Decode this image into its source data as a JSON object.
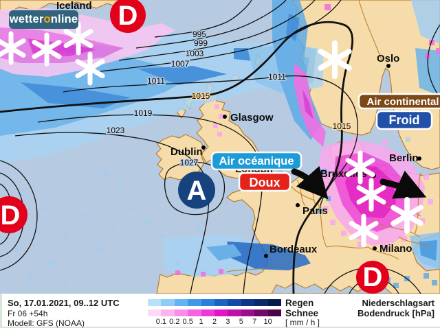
{
  "branding": {
    "logo_text_1": "wetter",
    "logo_accent": "o",
    "logo_text_2": "nline",
    "logo_bg": "#31647c",
    "logo_accent_color": "#f7a600"
  },
  "map": {
    "region_label": "Iceland",
    "cities": [
      {
        "name": "Oslo"
      },
      {
        "name": "Glasgow"
      },
      {
        "name": "Dublin"
      },
      {
        "name": "London"
      },
      {
        "name": "Bruxelles"
      },
      {
        "name": "Berlin"
      },
      {
        "name": "Paris"
      },
      {
        "name": "Bordeaux"
      },
      {
        "name": "Milano"
      }
    ],
    "pressure_centers": [
      {
        "symbol": "D",
        "meaning": "low",
        "color": "#e2001a"
      },
      {
        "symbol": "D",
        "meaning": "low",
        "color": "#e2001a"
      },
      {
        "symbol": "A",
        "meaning": "high",
        "color": "#16427e"
      },
      {
        "symbol": "D",
        "meaning": "low",
        "color": "#e2001a"
      }
    ],
    "isobar_labels": [
      "995",
      "999",
      "1003",
      "1007",
      "1011",
      "1011",
      "1015",
      "1015",
      "1019",
      "1023",
      "1027"
    ],
    "air_masses": [
      {
        "text": "Air continental",
        "bg": "#7d4716"
      },
      {
        "text": "Froid",
        "bg": "#2050a8"
      },
      {
        "text": "Air océanique",
        "bg": "#1d9bd7"
      },
      {
        "text": "Doux",
        "bg": "#e5231b"
      }
    ]
  },
  "footer": {
    "datetime": "So, 17.01.2021, 09..12 UTC",
    "run": "Fr 06 +54h",
    "model": "Modell: GFS (NOAA)",
    "legend": {
      "rain_label": "Regen",
      "snow_label": "Schnee",
      "unit": "[ mm / h ]",
      "ticks": [
        "0.1",
        "0.2",
        "0.5",
        "1",
        "2",
        "3",
        "5",
        "7",
        "10"
      ],
      "rain_colors": [
        "#b9e0fa",
        "#8ecdf5",
        "#63b4ee",
        "#3f9ae4",
        "#2a80d6",
        "#1c64c0",
        "#134ba4",
        "#0d3786",
        "#092968",
        "#051c4a"
      ],
      "snow_colors": [
        "#fcd9f8",
        "#fab5f1",
        "#f78fe9",
        "#f364e1",
        "#ee39d6",
        "#e215c6",
        "#c010aa",
        "#990c8a",
        "#720867",
        "#4c0448"
      ]
    },
    "right_title_1": "Niederschlagsart",
    "right_title_2": "Bodendruck [hPa]"
  }
}
